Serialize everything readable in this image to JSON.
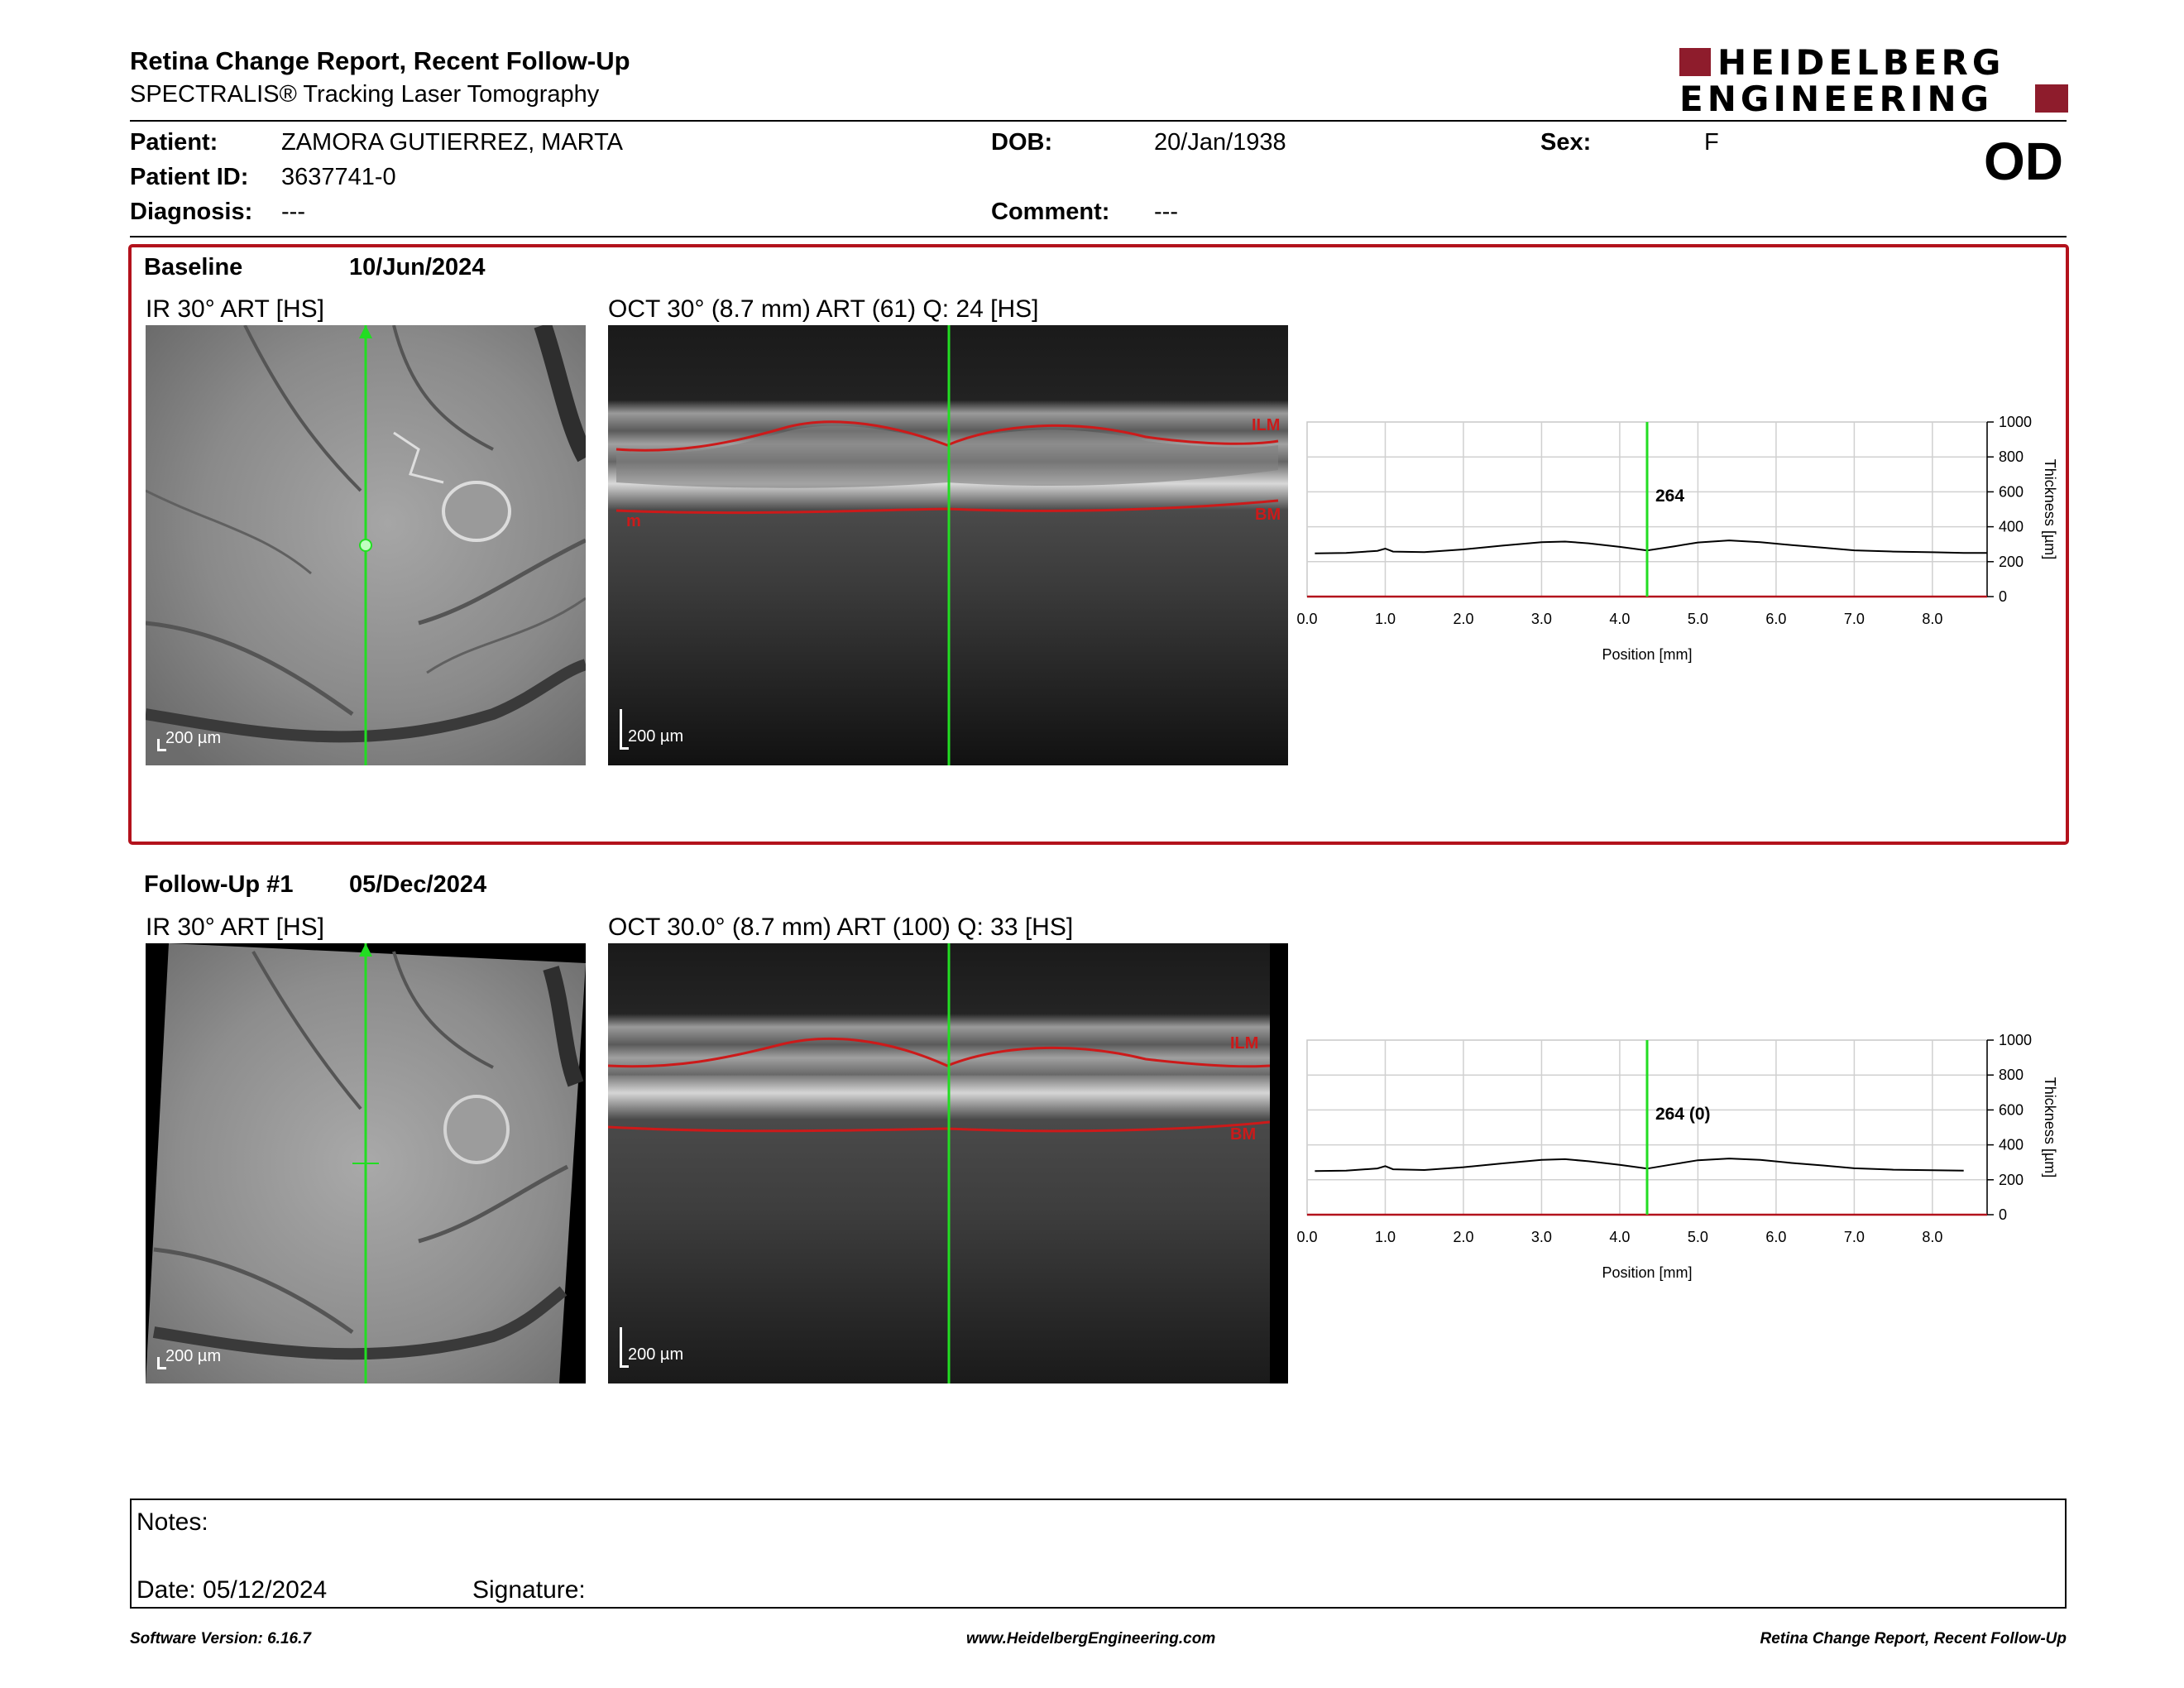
{
  "header": {
    "title": "Retina Change Report, Recent Follow-Up",
    "subtitle": "SPECTRALIS® Tracking Laser Tomography",
    "logo_line1": "HEIDELBERG",
    "logo_line2": "ENGINEERING"
  },
  "patient": {
    "patient_label": "Patient:",
    "patient_value": "ZAMORA GUTIERREZ, MARTA",
    "dob_label": "DOB:",
    "dob_value": "20/Jan/1938",
    "sex_label": "Sex:",
    "sex_value": "F",
    "id_label": "Patient ID:",
    "id_value": "3637741-0",
    "diagnosis_label": "Diagnosis:",
    "diagnosis_value": "---",
    "comment_label": "Comment:",
    "comment_value": "---",
    "eye": "OD"
  },
  "baseline": {
    "label": "Baseline",
    "date": "10/Jun/2024",
    "ir_title": "IR 30° ART [HS]",
    "oct_title": "OCT 30° (8.7 mm) ART (61) Q: 24 [HS]",
    "scale_ir": "200 µm",
    "scale_oct": "200 µm",
    "ilm_label": "ILM",
    "bm_label": "BM",
    "m_label": "m",
    "marker_value": "264"
  },
  "followup": {
    "label": "Follow-Up #1",
    "date": "05/Dec/2024",
    "ir_title": "IR 30° ART [HS]",
    "oct_title": "OCT 30.0° (8.7 mm) ART (100) Q: 33 [HS]",
    "scale_ir": "200 µm",
    "scale_oct": "200 µm",
    "ilm_label": "ILM",
    "bm_label": "BM",
    "marker_value": "264 (0)"
  },
  "chart_data": [
    {
      "type": "line",
      "xlabel": "Position [mm]",
      "ylabel": "Thickness [µm]",
      "xlim": [
        0,
        8.7
      ],
      "ylim": [
        0,
        1000
      ],
      "xticks": [
        "0.0",
        "1.0",
        "2.0",
        "3.0",
        "4.0",
        "5.0",
        "6.0",
        "7.0",
        "8.0"
      ],
      "yticks": [
        "0",
        "200",
        "400",
        "600",
        "800",
        "1000"
      ],
      "marker_x": 4.35,
      "marker_label": "264",
      "grid": true,
      "x": [
        0.1,
        0.5,
        0.9,
        1.0,
        1.1,
        1.5,
        2.0,
        2.5,
        3.0,
        3.3,
        3.6,
        4.0,
        4.35,
        4.7,
        5.0,
        5.4,
        5.8,
        6.2,
        6.6,
        7.0,
        7.5,
        8.0,
        8.4,
        8.7
      ],
      "y": [
        248,
        250,
        262,
        275,
        258,
        255,
        270,
        292,
        312,
        315,
        305,
        285,
        264,
        288,
        310,
        322,
        312,
        295,
        280,
        265,
        258,
        254,
        250,
        250
      ]
    },
    {
      "type": "line",
      "xlabel": "Position [mm]",
      "ylabel": "Thickness [µm]",
      "xlim": [
        0,
        8.7
      ],
      "ylim": [
        0,
        1000
      ],
      "xticks": [
        "0.0",
        "1.0",
        "2.0",
        "3.0",
        "4.0",
        "5.0",
        "6.0",
        "7.0",
        "8.0"
      ],
      "yticks": [
        "0",
        "200",
        "400",
        "600",
        "800",
        "1000"
      ],
      "marker_x": 4.35,
      "marker_label": "264 (0)",
      "grid": true,
      "x": [
        0.1,
        0.5,
        0.9,
        1.0,
        1.1,
        1.5,
        2.0,
        2.5,
        3.0,
        3.3,
        3.6,
        4.0,
        4.35,
        4.7,
        5.0,
        5.4,
        5.8,
        6.2,
        6.6,
        7.0,
        7.5,
        8.0,
        8.4
      ],
      "y": [
        250,
        252,
        265,
        278,
        260,
        256,
        272,
        294,
        314,
        318,
        306,
        286,
        264,
        290,
        312,
        322,
        314,
        296,
        282,
        266,
        258,
        255,
        252
      ]
    }
  ],
  "notes": {
    "notes_label": "Notes:",
    "date_label": "Date: 05/12/2024",
    "signature_label": "Signature:"
  },
  "footer": {
    "software": "Software Version: 6.16.7",
    "website": "www.HeidelbergEngineering.com",
    "report_name": "Retina Change Report, Recent Follow-Up"
  },
  "colors": {
    "accent_red": "#b3121c",
    "scan_green": "#22dd22",
    "layer_red": "#cc1a1a"
  }
}
